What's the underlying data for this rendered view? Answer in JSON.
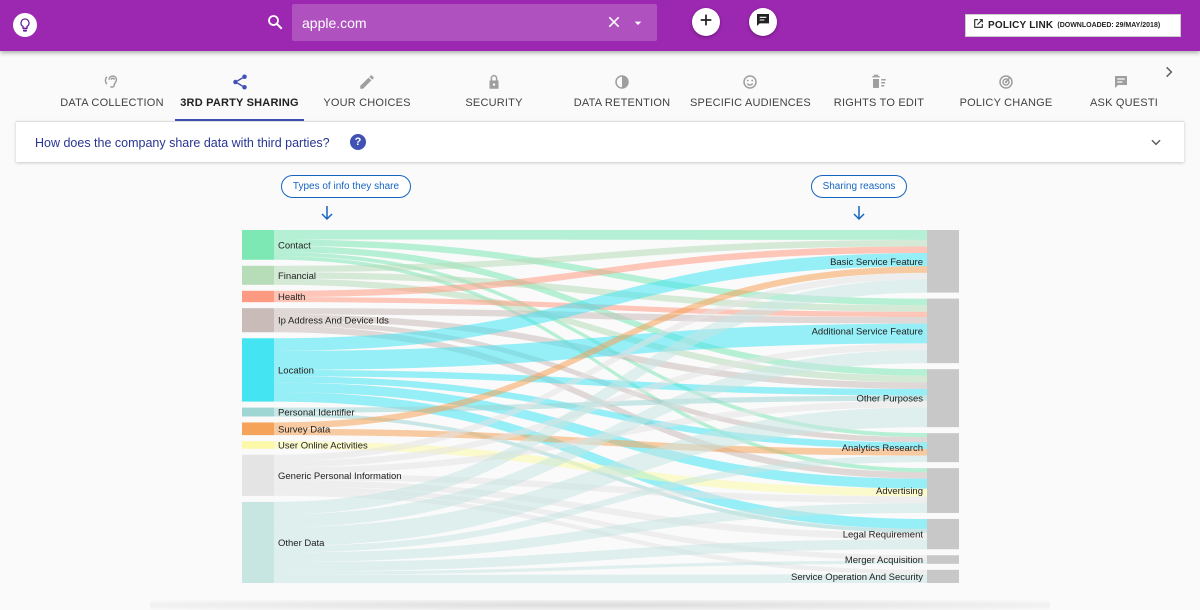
{
  "app": {
    "logo_icon": "lightbulb-icon"
  },
  "search": {
    "value": "apple.com",
    "placeholder": ""
  },
  "policy_link": {
    "label": "POLICY LINK",
    "downloaded": "(DOWNLOADED: 29/MAY/2018)"
  },
  "tabs": [
    {
      "label": "DATA COLLECTION",
      "icon": "ear-icon",
      "active": false
    },
    {
      "label": "3RD PARTY SHARING",
      "icon": "share-icon",
      "active": true
    },
    {
      "label": "YOUR CHOICES",
      "icon": "pencil-icon",
      "active": false
    },
    {
      "label": "SECURITY",
      "icon": "lock-icon",
      "active": false
    },
    {
      "label": "DATA RETENTION",
      "icon": "timer-icon",
      "active": false
    },
    {
      "label": "SPECIFIC AUDIENCES",
      "icon": "smiley-icon",
      "active": false
    },
    {
      "label": "RIGHTS TO EDIT",
      "icon": "delete-sweep-icon",
      "active": false
    },
    {
      "label": "POLICY CHANGE",
      "icon": "radar-icon",
      "active": false
    },
    {
      "label": "ASK QUESTI",
      "icon": "comment-icon",
      "active": false
    }
  ],
  "question": {
    "text": "How does the company share data with third parties?"
  },
  "diagram": {
    "left_heading": "Types of info they share",
    "right_heading": "Sharing reasons",
    "sources": [
      {
        "name": "Contact",
        "color": "#7ee8b4"
      },
      {
        "name": "Financial",
        "color": "#b6dcb8"
      },
      {
        "name": "Health",
        "color": "#ff9a82"
      },
      {
        "name": "Ip Address And Device Ids",
        "color": "#c9bcb8"
      },
      {
        "name": "Location",
        "color": "#44e4f2"
      },
      {
        "name": "Personal Identifier",
        "color": "#9fd6d4"
      },
      {
        "name": "Survey Data",
        "color": "#f5a25a"
      },
      {
        "name": "User Online Activities",
        "color": "#fbf9a8"
      },
      {
        "name": "Generic Personal Information",
        "color": "#e4e4e4"
      },
      {
        "name": "Other Data",
        "color": "#c7e6e1"
      }
    ],
    "targets": [
      {
        "name": "Basic Service Feature"
      },
      {
        "name": "Additional Service Feature"
      },
      {
        "name": "Other Purposes"
      },
      {
        "name": "Analytics Research"
      },
      {
        "name": "Advertising"
      },
      {
        "name": "Legal Requirement"
      },
      {
        "name": "Merger Acquisition"
      },
      {
        "name": "Service Operation And Security"
      }
    ],
    "target_color": "#c8c8c8",
    "links": [
      [
        0,
        0,
        1.5
      ],
      [
        0,
        1,
        1
      ],
      [
        0,
        2,
        1
      ],
      [
        0,
        3,
        0.6
      ],
      [
        0,
        4,
        0.6
      ],
      [
        1,
        0,
        1
      ],
      [
        1,
        1,
        1
      ],
      [
        1,
        2,
        1
      ],
      [
        2,
        0,
        1
      ],
      [
        2,
        1,
        0.8
      ],
      [
        3,
        1,
        1
      ],
      [
        3,
        2,
        1
      ],
      [
        3,
        3,
        0.8
      ],
      [
        3,
        4,
        1
      ],
      [
        4,
        0,
        2
      ],
      [
        4,
        1,
        3
      ],
      [
        4,
        2,
        1
      ],
      [
        4,
        3,
        1
      ],
      [
        4,
        4,
        1.5
      ],
      [
        4,
        5,
        1.5
      ],
      [
        5,
        2,
        0.8
      ],
      [
        5,
        5,
        0.6
      ],
      [
        6,
        0,
        1
      ],
      [
        6,
        3,
        1
      ],
      [
        7,
        4,
        1.2
      ],
      [
        8,
        0,
        1
      ],
      [
        8,
        1,
        1
      ],
      [
        8,
        2,
        1
      ],
      [
        8,
        4,
        1
      ],
      [
        8,
        5,
        1
      ],
      [
        8,
        6,
        0.8
      ],
      [
        8,
        7,
        0.7
      ],
      [
        9,
        0,
        2
      ],
      [
        9,
        1,
        2
      ],
      [
        9,
        2,
        3
      ],
      [
        9,
        3,
        1
      ],
      [
        9,
        4,
        1.5
      ],
      [
        9,
        5,
        1.5
      ],
      [
        9,
        6,
        0.5
      ],
      [
        9,
        7,
        1.3
      ]
    ]
  }
}
